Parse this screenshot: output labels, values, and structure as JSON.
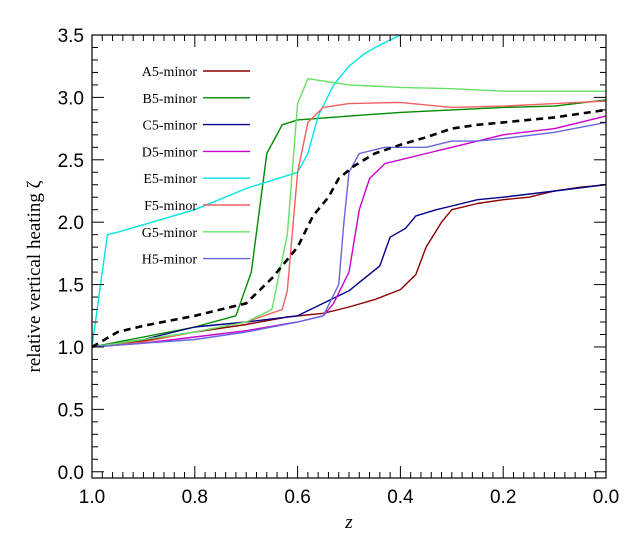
{
  "chart_data": {
    "type": "line",
    "xlabel": "z",
    "ylabel": "relative vertical heating ζ",
    "xlim": [
      1.0,
      0.0
    ],
    "ylim": [
      -0.05,
      3.5
    ],
    "x_reversed": true,
    "grid": false,
    "legend_placement": "top-left",
    "xticks": [
      1.0,
      0.8,
      0.6,
      0.4,
      0.2,
      0.0
    ],
    "xtick_labels": [
      "1.0",
      "0.8",
      "0.6",
      "0.4",
      "0.2",
      "0.0"
    ],
    "yticks": [
      0.0,
      0.5,
      1.0,
      1.5,
      2.0,
      2.5,
      3.0,
      3.5
    ],
    "ytick_labels": [
      "0.0",
      "0.5",
      "1.0",
      "1.5",
      "2.0",
      "2.5",
      "3.0",
      "3.5"
    ],
    "series": [
      {
        "name": "A5-minor",
        "color": "#8b0000",
        "points": [
          [
            1.0,
            1.0
          ],
          [
            0.9,
            1.05
          ],
          [
            0.8,
            1.12
          ],
          [
            0.7,
            1.18
          ],
          [
            0.62,
            1.24
          ],
          [
            0.55,
            1.27
          ],
          [
            0.5,
            1.32
          ],
          [
            0.45,
            1.38
          ],
          [
            0.4,
            1.46
          ],
          [
            0.37,
            1.58
          ],
          [
            0.35,
            1.8
          ],
          [
            0.32,
            2.0
          ],
          [
            0.3,
            2.1
          ],
          [
            0.25,
            2.15
          ],
          [
            0.2,
            2.18
          ],
          [
            0.15,
            2.2
          ],
          [
            0.1,
            2.25
          ],
          [
            0.05,
            2.28
          ],
          [
            0.0,
            2.3
          ]
        ]
      },
      {
        "name": "B5-minor",
        "color": "#008b00",
        "points": [
          [
            1.0,
            1.0
          ],
          [
            0.9,
            1.08
          ],
          [
            0.8,
            1.16
          ],
          [
            0.72,
            1.25
          ],
          [
            0.69,
            1.6
          ],
          [
            0.66,
            2.55
          ],
          [
            0.63,
            2.78
          ],
          [
            0.6,
            2.82
          ],
          [
            0.5,
            2.85
          ],
          [
            0.4,
            2.88
          ],
          [
            0.3,
            2.9
          ],
          [
            0.2,
            2.92
          ],
          [
            0.1,
            2.93
          ],
          [
            0.0,
            2.98
          ]
        ]
      },
      {
        "name": "C5-minor",
        "color": "#00008b",
        "points": [
          [
            1.0,
            1.0
          ],
          [
            0.9,
            1.06
          ],
          [
            0.8,
            1.16
          ],
          [
            0.7,
            1.2
          ],
          [
            0.6,
            1.25
          ],
          [
            0.55,
            1.35
          ],
          [
            0.5,
            1.45
          ],
          [
            0.47,
            1.55
          ],
          [
            0.44,
            1.65
          ],
          [
            0.42,
            1.88
          ],
          [
            0.39,
            1.95
          ],
          [
            0.37,
            2.05
          ],
          [
            0.33,
            2.1
          ],
          [
            0.3,
            2.13
          ],
          [
            0.25,
            2.18
          ],
          [
            0.2,
            2.2
          ],
          [
            0.1,
            2.25
          ],
          [
            0.0,
            2.3
          ]
        ]
      },
      {
        "name": "D5-minor",
        "color": "#cc00cc",
        "points": [
          [
            1.0,
            1.0
          ],
          [
            0.9,
            1.03
          ],
          [
            0.8,
            1.08
          ],
          [
            0.7,
            1.13
          ],
          [
            0.6,
            1.2
          ],
          [
            0.55,
            1.25
          ],
          [
            0.53,
            1.35
          ],
          [
            0.5,
            1.6
          ],
          [
            0.48,
            2.1
          ],
          [
            0.46,
            2.35
          ],
          [
            0.43,
            2.47
          ],
          [
            0.4,
            2.5
          ],
          [
            0.35,
            2.55
          ],
          [
            0.3,
            2.6
          ],
          [
            0.25,
            2.65
          ],
          [
            0.2,
            2.7
          ],
          [
            0.1,
            2.75
          ],
          [
            0.0,
            2.85
          ]
        ]
      },
      {
        "name": "E5-minor",
        "color": "#00e5e5",
        "points": [
          [
            1.0,
            1.0
          ],
          [
            0.97,
            1.9
          ],
          [
            0.95,
            1.92
          ],
          [
            0.9,
            1.98
          ],
          [
            0.8,
            2.1
          ],
          [
            0.7,
            2.27
          ],
          [
            0.6,
            2.4
          ],
          [
            0.58,
            2.55
          ],
          [
            0.56,
            2.85
          ],
          [
            0.53,
            3.1
          ],
          [
            0.5,
            3.25
          ],
          [
            0.47,
            3.35
          ],
          [
            0.44,
            3.42
          ],
          [
            0.41,
            3.48
          ],
          [
            0.4,
            3.5
          ]
        ]
      },
      {
        "name": "F5-minor",
        "color": "#f06060",
        "points": [
          [
            1.0,
            1.0
          ],
          [
            0.9,
            1.04
          ],
          [
            0.8,
            1.12
          ],
          [
            0.7,
            1.2
          ],
          [
            0.63,
            1.3
          ],
          [
            0.62,
            1.45
          ],
          [
            0.6,
            2.4
          ],
          [
            0.58,
            2.8
          ],
          [
            0.55,
            2.92
          ],
          [
            0.5,
            2.95
          ],
          [
            0.4,
            2.96
          ],
          [
            0.3,
            2.92
          ],
          [
            0.2,
            2.93
          ],
          [
            0.1,
            2.95
          ],
          [
            0.0,
            2.97
          ]
        ]
      },
      {
        "name": "G5-minor",
        "color": "#66e066",
        "points": [
          [
            1.0,
            1.0
          ],
          [
            0.9,
            1.06
          ],
          [
            0.8,
            1.12
          ],
          [
            0.7,
            1.2
          ],
          [
            0.65,
            1.3
          ],
          [
            0.62,
            1.9
          ],
          [
            0.6,
            2.95
          ],
          [
            0.58,
            3.15
          ],
          [
            0.5,
            3.1
          ],
          [
            0.4,
            3.08
          ],
          [
            0.3,
            3.07
          ],
          [
            0.2,
            3.05
          ],
          [
            0.1,
            3.05
          ],
          [
            0.0,
            3.05
          ]
        ]
      },
      {
        "name": "H5-minor",
        "color": "#6666dd",
        "points": [
          [
            1.0,
            1.0
          ],
          [
            0.9,
            1.03
          ],
          [
            0.8,
            1.06
          ],
          [
            0.7,
            1.12
          ],
          [
            0.6,
            1.2
          ],
          [
            0.55,
            1.25
          ],
          [
            0.52,
            1.5
          ],
          [
            0.51,
            2.0
          ],
          [
            0.5,
            2.4
          ],
          [
            0.48,
            2.55
          ],
          [
            0.43,
            2.6
          ],
          [
            0.4,
            2.6
          ],
          [
            0.35,
            2.6
          ],
          [
            0.3,
            2.65
          ],
          [
            0.25,
            2.65
          ],
          [
            0.2,
            2.67
          ],
          [
            0.1,
            2.72
          ],
          [
            0.0,
            2.8
          ]
        ]
      },
      {
        "name": "",
        "color": "#000000",
        "dashed": true,
        "points": [
          [
            1.0,
            1.0
          ],
          [
            0.95,
            1.12
          ],
          [
            0.9,
            1.17
          ],
          [
            0.8,
            1.25
          ],
          [
            0.7,
            1.35
          ],
          [
            0.65,
            1.55
          ],
          [
            0.6,
            1.8
          ],
          [
            0.57,
            2.05
          ],
          [
            0.54,
            2.2
          ],
          [
            0.52,
            2.35
          ],
          [
            0.49,
            2.45
          ],
          [
            0.45,
            2.55
          ],
          [
            0.4,
            2.62
          ],
          [
            0.35,
            2.68
          ],
          [
            0.3,
            2.75
          ],
          [
            0.25,
            2.78
          ],
          [
            0.2,
            2.8
          ],
          [
            0.1,
            2.84
          ],
          [
            0.0,
            2.9
          ]
        ]
      }
    ]
  }
}
